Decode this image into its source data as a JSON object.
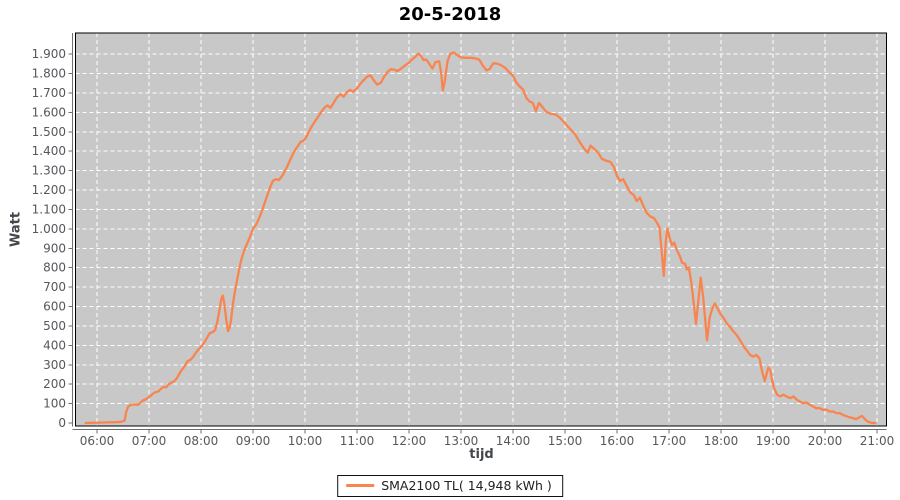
{
  "colors": {
    "series_line": "#f8854f",
    "plot_bg": "#c8c8c8",
    "grid": "#ffffff",
    "plot_border": "#000000",
    "axis": "#6e6e6e",
    "tick_text": "#54585c",
    "title_text": "#000000"
  },
  "chart_data": {
    "type": "line",
    "title": "20-5-2018",
    "xlabel": "tijd",
    "ylabel": "Watt",
    "grid": {
      "style": "dashed",
      "horizontal": true,
      "vertical": true
    },
    "x_axis": {
      "tick_hours": [
        6,
        7,
        8,
        9,
        10,
        11,
        12,
        13,
        14,
        15,
        16,
        17,
        18,
        19,
        20,
        21
      ],
      "tick_labels": [
        "06:00",
        "07:00",
        "08:00",
        "09:00",
        "10:00",
        "11:00",
        "12:00",
        "13:00",
        "14:00",
        "15:00",
        "16:00",
        "17:00",
        "18:00",
        "19:00",
        "20:00",
        "21:00"
      ]
    },
    "y_axis": {
      "tick_values": [
        0,
        100,
        200,
        300,
        400,
        500,
        600,
        700,
        800,
        900,
        1000,
        1100,
        1200,
        1300,
        1400,
        1500,
        1600,
        1700,
        1800,
        1900
      ],
      "tick_labels": [
        "0",
        "100",
        "200",
        "300",
        "400",
        "500",
        "600",
        "700",
        "800",
        "900",
        "1.000",
        "1.100",
        "1.200",
        "1.300",
        "1.400",
        "1.500",
        "1.600",
        "1.700",
        "1.800",
        "1.900"
      ],
      "range": [
        0,
        2008
      ]
    },
    "legend": {
      "position": "bottom-center",
      "label": "SMA2100 TL( 14,948 kWh )"
    },
    "series": [
      {
        "name": "SMA2100 TL( 14,948 kWh )",
        "color": "#f8854f",
        "points": [
          [
            5.78,
            0
          ],
          [
            5.9,
            1
          ],
          [
            6.05,
            2
          ],
          [
            6.2,
            3
          ],
          [
            6.35,
            4
          ],
          [
            6.47,
            6
          ],
          [
            6.53,
            12
          ],
          [
            6.56,
            55
          ],
          [
            6.6,
            85
          ],
          [
            6.65,
            93
          ],
          [
            6.72,
            96
          ],
          [
            6.78,
            93
          ],
          [
            6.83,
            103
          ],
          [
            6.88,
            116
          ],
          [
            6.93,
            121
          ],
          [
            6.98,
            130
          ],
          [
            7.03,
            140
          ],
          [
            7.08,
            152
          ],
          [
            7.13,
            159
          ],
          [
            7.18,
            163
          ],
          [
            7.23,
            176
          ],
          [
            7.28,
            186
          ],
          [
            7.33,
            184
          ],
          [
            7.38,
            200
          ],
          [
            7.43,
            208
          ],
          [
            7.48,
            215
          ],
          [
            7.53,
            228
          ],
          [
            7.58,
            252
          ],
          [
            7.62,
            270
          ],
          [
            7.66,
            283
          ],
          [
            7.7,
            300
          ],
          [
            7.74,
            318
          ],
          [
            7.8,
            326
          ],
          [
            7.85,
            341
          ],
          [
            7.9,
            362
          ],
          [
            7.95,
            378
          ],
          [
            8.0,
            392
          ],
          [
            8.06,
            413
          ],
          [
            8.12,
            441
          ],
          [
            8.17,
            463
          ],
          [
            8.22,
            467
          ],
          [
            8.27,
            478
          ],
          [
            8.31,
            515
          ],
          [
            8.35,
            575
          ],
          [
            8.39,
            640
          ],
          [
            8.42,
            656
          ],
          [
            8.45,
            612
          ],
          [
            8.48,
            542
          ],
          [
            8.52,
            473
          ],
          [
            8.55,
            490
          ],
          [
            8.58,
            536
          ],
          [
            8.61,
            606
          ],
          [
            8.64,
            658
          ],
          [
            8.69,
            732
          ],
          [
            8.74,
            802
          ],
          [
            8.79,
            856
          ],
          [
            8.84,
            896
          ],
          [
            8.89,
            926
          ],
          [
            8.94,
            958
          ],
          [
            9.0,
            1002
          ],
          [
            9.06,
            1022
          ],
          [
            9.12,
            1056
          ],
          [
            9.19,
            1106
          ],
          [
            9.26,
            1161
          ],
          [
            9.32,
            1207
          ],
          [
            9.38,
            1247
          ],
          [
            9.44,
            1256
          ],
          [
            9.5,
            1252
          ],
          [
            9.57,
            1276
          ],
          [
            9.64,
            1312
          ],
          [
            9.71,
            1352
          ],
          [
            9.78,
            1394
          ],
          [
            9.85,
            1422
          ],
          [
            9.92,
            1449
          ],
          [
            9.97,
            1453
          ],
          [
            10.02,
            1469
          ],
          [
            10.07,
            1499
          ],
          [
            10.12,
            1523
          ],
          [
            10.18,
            1549
          ],
          [
            10.24,
            1573
          ],
          [
            10.31,
            1601
          ],
          [
            10.37,
            1623
          ],
          [
            10.43,
            1636
          ],
          [
            10.49,
            1623
          ],
          [
            10.55,
            1649
          ],
          [
            10.62,
            1679
          ],
          [
            10.69,
            1693
          ],
          [
            10.74,
            1681
          ],
          [
            10.81,
            1706
          ],
          [
            10.87,
            1716
          ],
          [
            10.92,
            1706
          ],
          [
            11.0,
            1723
          ],
          [
            11.06,
            1746
          ],
          [
            11.12,
            1763
          ],
          [
            11.19,
            1783
          ],
          [
            11.26,
            1791
          ],
          [
            11.32,
            1766
          ],
          [
            11.39,
            1743
          ],
          [
            11.46,
            1753
          ],
          [
            11.52,
            1783
          ],
          [
            11.59,
            1809
          ],
          [
            11.65,
            1823
          ],
          [
            11.72,
            1820
          ],
          [
            11.78,
            1813
          ],
          [
            11.85,
            1826
          ],
          [
            11.92,
            1841
          ],
          [
            12.0,
            1856
          ],
          [
            12.06,
            1873
          ],
          [
            12.12,
            1886
          ],
          [
            12.18,
            1903
          ],
          [
            12.23,
            1891
          ],
          [
            12.28,
            1869
          ],
          [
            12.33,
            1873
          ],
          [
            12.4,
            1846
          ],
          [
            12.45,
            1826
          ],
          [
            12.51,
            1859
          ],
          [
            12.58,
            1863
          ],
          [
            12.62,
            1800
          ],
          [
            12.65,
            1713
          ],
          [
            12.69,
            1765
          ],
          [
            12.74,
            1863
          ],
          [
            12.79,
            1901
          ],
          [
            12.86,
            1909
          ],
          [
            12.92,
            1896
          ],
          [
            13.0,
            1883
          ],
          [
            13.08,
            1881
          ],
          [
            13.17,
            1881
          ],
          [
            13.26,
            1879
          ],
          [
            13.35,
            1872
          ],
          [
            13.42,
            1841
          ],
          [
            13.49,
            1816
          ],
          [
            13.55,
            1823
          ],
          [
            13.62,
            1853
          ],
          [
            13.69,
            1851
          ],
          [
            13.77,
            1843
          ],
          [
            13.85,
            1829
          ],
          [
            13.93,
            1806
          ],
          [
            14.0,
            1789
          ],
          [
            14.06,
            1756
          ],
          [
            14.12,
            1736
          ],
          [
            14.19,
            1719
          ],
          [
            14.26,
            1673
          ],
          [
            14.32,
            1656
          ],
          [
            14.38,
            1649
          ],
          [
            14.44,
            1606
          ],
          [
            14.5,
            1649
          ],
          [
            14.57,
            1626
          ],
          [
            14.64,
            1603
          ],
          [
            14.72,
            1593
          ],
          [
            14.82,
            1589
          ],
          [
            14.9,
            1573
          ],
          [
            14.97,
            1553
          ],
          [
            15.04,
            1531
          ],
          [
            15.12,
            1509
          ],
          [
            15.19,
            1489
          ],
          [
            15.27,
            1453
          ],
          [
            15.36,
            1416
          ],
          [
            15.44,
            1393
          ],
          [
            15.49,
            1429
          ],
          [
            15.56,
            1413
          ],
          [
            15.64,
            1391
          ],
          [
            15.71,
            1361
          ],
          [
            15.79,
            1351
          ],
          [
            15.87,
            1346
          ],
          [
            15.94,
            1319
          ],
          [
            16.0,
            1273
          ],
          [
            16.06,
            1246
          ],
          [
            16.12,
            1256
          ],
          [
            16.19,
            1219
          ],
          [
            16.26,
            1186
          ],
          [
            16.32,
            1176
          ],
          [
            16.38,
            1143
          ],
          [
            16.44,
            1161
          ],
          [
            16.51,
            1116
          ],
          [
            16.57,
            1083
          ],
          [
            16.64,
            1063
          ],
          [
            16.71,
            1056
          ],
          [
            16.77,
            1031
          ],
          [
            16.82,
            1006
          ],
          [
            16.86,
            881
          ],
          [
            16.9,
            758
          ],
          [
            16.94,
            941
          ],
          [
            16.97,
            1001
          ],
          [
            17.02,
            946
          ],
          [
            17.06,
            916
          ],
          [
            17.1,
            929
          ],
          [
            17.16,
            886
          ],
          [
            17.21,
            859
          ],
          [
            17.25,
            826
          ],
          [
            17.31,
            819
          ],
          [
            17.34,
            791
          ],
          [
            17.38,
            801
          ],
          [
            17.43,
            721
          ],
          [
            17.47,
            631
          ],
          [
            17.52,
            511
          ],
          [
            17.57,
            643
          ],
          [
            17.61,
            749
          ],
          [
            17.66,
            641
          ],
          [
            17.7,
            521
          ],
          [
            17.73,
            426
          ],
          [
            17.78,
            541
          ],
          [
            17.83,
            589
          ],
          [
            17.88,
            616
          ],
          [
            17.94,
            586
          ],
          [
            18.0,
            557
          ],
          [
            18.05,
            541
          ],
          [
            18.11,
            514
          ],
          [
            18.17,
            496
          ],
          [
            18.24,
            471
          ],
          [
            18.3,
            454
          ],
          [
            18.36,
            429
          ],
          [
            18.43,
            396
          ],
          [
            18.49,
            376
          ],
          [
            18.56,
            351
          ],
          [
            18.62,
            342
          ],
          [
            18.68,
            351
          ],
          [
            18.74,
            333
          ],
          [
            18.78,
            276
          ],
          [
            18.84,
            216
          ],
          [
            18.88,
            256
          ],
          [
            18.91,
            286
          ],
          [
            18.95,
            271
          ],
          [
            18.98,
            223
          ],
          [
            19.02,
            181
          ],
          [
            19.08,
            146
          ],
          [
            19.14,
            137
          ],
          [
            19.2,
            146
          ],
          [
            19.26,
            137
          ],
          [
            19.33,
            128
          ],
          [
            19.39,
            137
          ],
          [
            19.46,
            120
          ],
          [
            19.52,
            111
          ],
          [
            19.58,
            102
          ],
          [
            19.64,
            106
          ],
          [
            19.71,
            94
          ],
          [
            19.77,
            85
          ],
          [
            19.83,
            76
          ],
          [
            19.9,
            76
          ],
          [
            19.96,
            68
          ],
          [
            20.03,
            68
          ],
          [
            20.09,
            59
          ],
          [
            20.16,
            59
          ],
          [
            20.22,
            51
          ],
          [
            20.28,
            51
          ],
          [
            20.34,
            42
          ],
          [
            20.41,
            35
          ],
          [
            20.47,
            30
          ],
          [
            20.54,
            25
          ],
          [
            20.6,
            20
          ],
          [
            20.66,
            29
          ],
          [
            20.71,
            36
          ],
          [
            20.75,
            26
          ],
          [
            20.79,
            13
          ],
          [
            20.84,
            5
          ],
          [
            20.89,
            1
          ],
          [
            20.97,
            0
          ]
        ]
      }
    ]
  }
}
